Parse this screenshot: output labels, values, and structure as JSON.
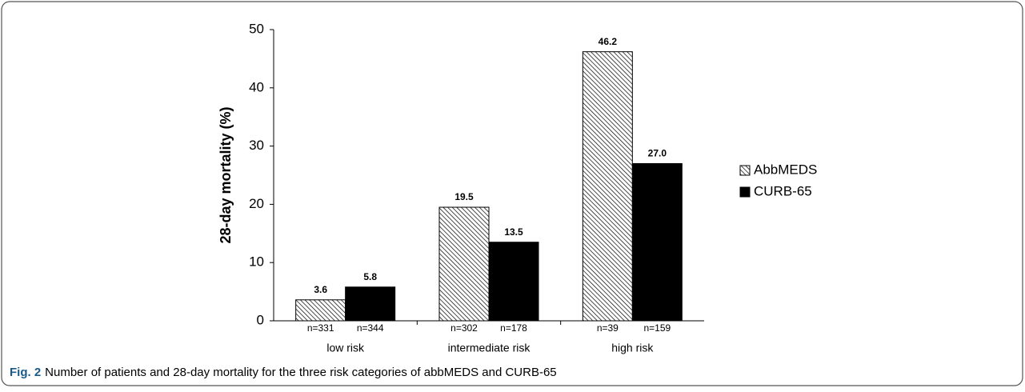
{
  "chart_data": {
    "type": "bar",
    "y_label": "28-day mortality (%)",
    "categories": [
      "low risk",
      "intermediate risk",
      "high risk"
    ],
    "series": [
      {
        "name": "AbbMEDS",
        "color": "#000000",
        "hatch": true,
        "values": [
          3.6,
          19.5,
          46.2
        ],
        "value_labels": [
          "3.6",
          "19.5",
          "46.2"
        ],
        "n_labels": [
          "n=331",
          "n=302",
          "n=39"
        ]
      },
      {
        "name": "CURB-65",
        "color": "#000000",
        "hatch": false,
        "values": [
          5.8,
          13.5,
          27.0
        ],
        "value_labels": [
          "5.8",
          "13.5",
          "27.0"
        ],
        "n_labels": [
          "n=344",
          "n=178",
          "n=159"
        ]
      }
    ],
    "ylim": [
      0,
      50
    ],
    "yticks": [
      0,
      10,
      20,
      30,
      40,
      50
    ],
    "grid": false,
    "legend": "right"
  },
  "caption": {
    "label": "Fig. 2",
    "text": "Number of patients and 28-day mortality for the three risk categories of abbMEDS and CURB-65"
  }
}
